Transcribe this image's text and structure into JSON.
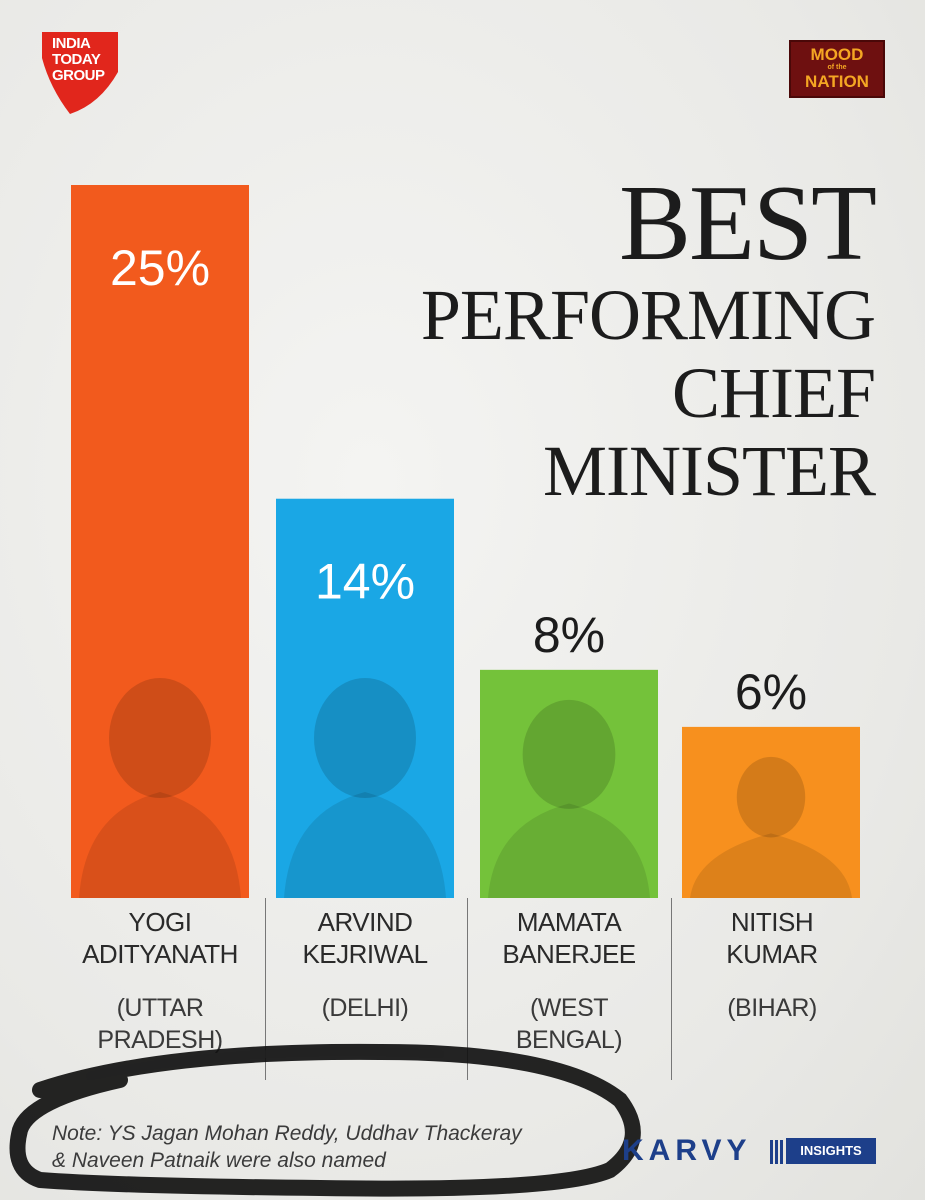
{
  "logo": {
    "text_lines": [
      "INDIA",
      "TODAY",
      "GROUP"
    ],
    "color": "#e1261c"
  },
  "badge": {
    "line1": "MOOD",
    "line2": "of the",
    "line3": "NATION"
  },
  "title": {
    "line1": "BEST",
    "line2": "PERFORMING",
    "line3": "CHIEF",
    "line4": "MINISTER"
  },
  "chart_data": {
    "type": "bar",
    "title": "BEST PERFORMING CHIEF MINISTER",
    "categories": [
      "YOGI ADITYANATH",
      "ARVIND KEJRIWAL",
      "MAMATA BANERJEE",
      "NITISH KUMAR"
    ],
    "values": [
      25,
      14,
      8,
      6
    ],
    "value_labels": [
      "25%",
      "14%",
      "8%",
      "6%"
    ],
    "unit": "%",
    "colors": [
      "#f25a1d",
      "#1aa7e5",
      "#74c23a",
      "#f7901e"
    ],
    "ylim": [
      0,
      25
    ],
    "grid": false,
    "bars": [
      {
        "name_line1": "YOGI",
        "name_line2": "ADITYANATH",
        "state_line1": "(UTTAR",
        "state_line2": "PRADESH)"
      },
      {
        "name_line1": "ARVIND",
        "name_line2": "KEJRIWAL",
        "state_line1": "(DELHI)",
        "state_line2": ""
      },
      {
        "name_line1": "MAMATA",
        "name_line2": "BANERJEE",
        "state_line1": "(WEST",
        "state_line2": "BENGAL)"
      },
      {
        "name_line1": "NITISH",
        "name_line2": "KUMAR",
        "state_line1": "(BIHAR)",
        "state_line2": ""
      }
    ]
  },
  "note": {
    "line1": "Note: YS Jagan Mohan Reddy, Uddhav Thackeray",
    "line2": "& Naveen Patnaik were also named"
  },
  "karvy": {
    "name": "KARVY",
    "insights": "INSIGHTS"
  }
}
